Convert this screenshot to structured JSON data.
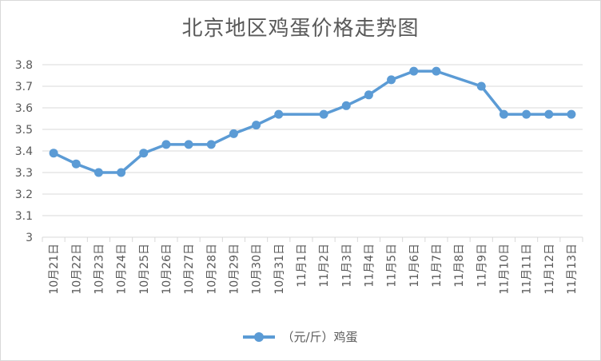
{
  "chart_data": {
    "type": "line",
    "title": "北京地区鸡蛋价格走势图",
    "categories": [
      "10月21日",
      "10月22日",
      "10月23日",
      "10月24日",
      "10月25日",
      "10月26日",
      "10月27日",
      "10月28日",
      "10月29日",
      "10月30日",
      "10月31日",
      "11月1日",
      "11月2日",
      "11月3日",
      "11月4日",
      "11月5日",
      "11月6日",
      "11月7日",
      "11月8日",
      "11月9日",
      "11月10日",
      "11月11日",
      "11月12日",
      "11月13日"
    ],
    "series": [
      {
        "name": "（元/斤）鸡蛋",
        "values": [
          3.39,
          3.34,
          3.3,
          3.3,
          3.39,
          3.43,
          3.43,
          3.43,
          3.48,
          3.52,
          3.57,
          null,
          3.57,
          3.61,
          3.66,
          3.73,
          3.77,
          3.77,
          null,
          3.7,
          3.57,
          3.57,
          3.57,
          3.57
        ]
      }
    ],
    "ylim": [
      3,
      3.8
    ],
    "yticks": [
      "3",
      "3.1",
      "3.2",
      "3.3",
      "3.4",
      "3.5",
      "3.6",
      "3.7",
      "3.8"
    ],
    "grid": true,
    "legend": "bottom",
    "colors": {
      "series": "#5b9bd5",
      "grid": "#d9d9d9",
      "text": "#595959"
    }
  }
}
